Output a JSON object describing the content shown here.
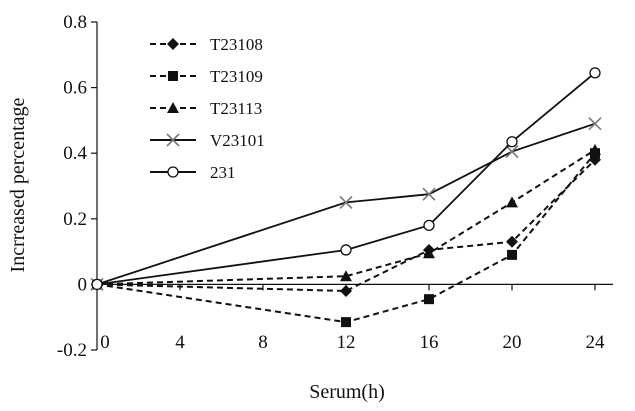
{
  "chart_data": {
    "type": "line",
    "title": "",
    "xlabel": "Serum(h)",
    "ylabel": "Incrreased percentage",
    "xlim": [
      0,
      24
    ],
    "ylim": [
      -0.2,
      0.8
    ],
    "x_ticks": [
      0,
      4,
      8,
      12,
      16,
      20,
      24
    ],
    "y_ticks": [
      -0.2,
      0,
      0.2,
      0.4,
      0.6,
      0.8
    ],
    "x_tick_labels": [
      "0",
      "4",
      "8",
      "12",
      "16",
      "20",
      "24"
    ],
    "y_tick_labels": [
      "-0.2",
      "0",
      "0.2",
      "0.4",
      "0.6",
      "0.8"
    ],
    "grid": false,
    "legend_position": "top-left",
    "series": [
      {
        "name": "T23108",
        "x": [
          0,
          12,
          16,
          20,
          24
        ],
        "y": [
          0.0,
          -0.02,
          0.105,
          0.13,
          0.38
        ],
        "marker": "diamond",
        "line": "dashed"
      },
      {
        "name": "T23109",
        "x": [
          0,
          12,
          16,
          20,
          24
        ],
        "y": [
          0.0,
          -0.115,
          -0.045,
          0.09,
          0.4
        ],
        "marker": "square",
        "line": "dashed"
      },
      {
        "name": "T23113",
        "x": [
          0,
          12,
          16,
          20,
          24
        ],
        "y": [
          0.0,
          0.025,
          0.095,
          0.25,
          0.41
        ],
        "marker": "triangle",
        "line": "dashed"
      },
      {
        "name": "V23101",
        "x": [
          0,
          12,
          16,
          20,
          24
        ],
        "y": [
          0.0,
          0.25,
          0.275,
          0.405,
          0.49
        ],
        "marker": "x",
        "line": "solid"
      },
      {
        "name": "231",
        "x": [
          0,
          12,
          16,
          20,
          24
        ],
        "y": [
          0.0,
          0.105,
          0.18,
          0.435,
          0.645
        ],
        "marker": "circle",
        "line": "solid"
      }
    ]
  }
}
